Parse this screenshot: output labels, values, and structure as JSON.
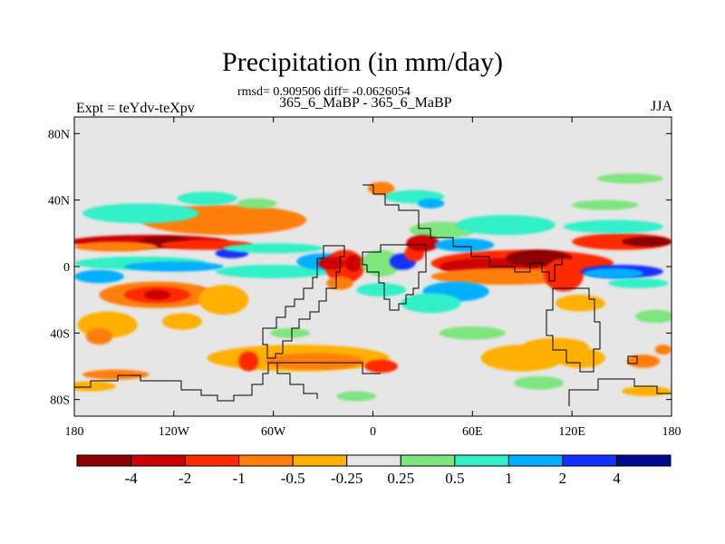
{
  "header": {
    "title": "Precipitation (in mm/day)",
    "stats_line": "rmsd= 0.909506 diff= -0.0626054",
    "case_line": "365_6_MaBP - 365_6_MaBP",
    "left_label": "Expt = teYdv-teXpv",
    "right_label": "JJA"
  },
  "chart_data": {
    "type": "heatmap",
    "title": "Precipitation (in mm/day)",
    "subtitle": "rmsd= 0.909506 diff= -0.0626054",
    "case": "365_6_MaBP - 365_6_MaBP",
    "experiment": "Expt = teYdv-teXpv",
    "season": "JJA",
    "projection": "cylindrical equidistant (lon/lat)",
    "xlim": [
      -180,
      180
    ],
    "ylim": [
      -90,
      90
    ],
    "x_ticks": [
      {
        "value": -180,
        "label": "180"
      },
      {
        "value": -120,
        "label": "120W"
      },
      {
        "value": -60,
        "label": "60W"
      },
      {
        "value": 0,
        "label": "0"
      },
      {
        "value": 60,
        "label": "60E"
      },
      {
        "value": 120,
        "label": "120E"
      },
      {
        "value": 180,
        "label": "180"
      }
    ],
    "y_ticks": [
      {
        "value": 80,
        "label": "80N"
      },
      {
        "value": 40,
        "label": "40N"
      },
      {
        "value": 0,
        "label": "0"
      },
      {
        "value": -40,
        "label": "40S"
      },
      {
        "value": -80,
        "label": "80S"
      }
    ],
    "colorbar": {
      "levels": [
        -4,
        -2,
        -1,
        -0.5,
        -0.25,
        0.25,
        0.5,
        1,
        2,
        4
      ],
      "level_labels": [
        "-4",
        "-2",
        "-1",
        "-0.5",
        "-0.25",
        "0.25",
        "0.5",
        "1",
        "2",
        "4"
      ],
      "colors": [
        "#8b0000",
        "#cc0000",
        "#ff2a00",
        "#ff7f0e",
        "#ffb000",
        "#e6e6e6",
        "#7fe57f",
        "#33f0c8",
        "#00b0ff",
        "#1432ff",
        "#000a8c"
      ]
    },
    "regions": [
      {
        "lon": -135,
        "lat": 15,
        "rlon": 48,
        "rlat": 4,
        "color": "#cc0000"
      },
      {
        "lon": -125,
        "lat": 15,
        "rlon": 16,
        "rlat": 3,
        "color": "#8b0000"
      },
      {
        "lon": -100,
        "lat": 13,
        "rlon": 28,
        "rlat": 3,
        "color": "#ff2a00"
      },
      {
        "lon": -85,
        "lat": 8,
        "rlon": 10,
        "rlat": 3,
        "color": "#1432ff"
      },
      {
        "lon": -155,
        "lat": 12,
        "rlon": 25,
        "rlat": 3,
        "color": "#ff7f0e"
      },
      {
        "lon": -90,
        "lat": 28,
        "rlon": 50,
        "rlat": 9,
        "color": "#ff7f0e"
      },
      {
        "lon": -140,
        "lat": 32,
        "rlon": 35,
        "rlat": 6,
        "color": "#33f0c8"
      },
      {
        "lon": -100,
        "lat": 41,
        "rlon": 18,
        "rlat": 4,
        "color": "#33f0c8"
      },
      {
        "lon": -70,
        "lat": 38,
        "rlon": 12,
        "rlat": 3,
        "color": "#7fe57f"
      },
      {
        "lon": -140,
        "lat": 2,
        "rlon": 40,
        "rlat": 4,
        "color": "#33f0c8"
      },
      {
        "lon": -120,
        "lat": 0,
        "rlon": 30,
        "rlat": 3,
        "color": "#00b0ff"
      },
      {
        "lon": -60,
        "lat": -3,
        "rlon": 35,
        "rlat": 4,
        "color": "#33f0c8"
      },
      {
        "lon": -130,
        "lat": -17,
        "rlon": 35,
        "rlat": 8,
        "color": "#ff7f0e"
      },
      {
        "lon": -130,
        "lat": -17,
        "rlon": 20,
        "rlat": 5,
        "color": "#ff2a00"
      },
      {
        "lon": -130,
        "lat": -17,
        "rlon": 8,
        "rlat": 3,
        "color": "#cc0000"
      },
      {
        "lon": -165,
        "lat": -6,
        "rlon": 15,
        "rlat": 4,
        "color": "#00b0ff"
      },
      {
        "lon": -90,
        "lat": -20,
        "rlon": 15,
        "rlat": 9,
        "color": "#ffb000"
      },
      {
        "lon": -160,
        "lat": -35,
        "rlon": 18,
        "rlat": 8,
        "color": "#ffb000"
      },
      {
        "lon": -165,
        "lat": -42,
        "rlon": 8,
        "rlat": 5,
        "color": "#ff7f0e"
      },
      {
        "lon": -115,
        "lat": -33,
        "rlon": 12,
        "rlat": 5,
        "color": "#ffb000"
      },
      {
        "lon": -45,
        "lat": -55,
        "rlon": 55,
        "rlat": 8,
        "color": "#ffb000"
      },
      {
        "lon": -35,
        "lat": -57,
        "rlon": 30,
        "rlat": 5,
        "color": "#ff7f0e"
      },
      {
        "lon": 5,
        "lat": -60,
        "rlon": 10,
        "rlat": 4,
        "color": "#ff2a00"
      },
      {
        "lon": -75,
        "lat": -57,
        "rlon": 6,
        "rlat": 6,
        "color": "#ff2a00"
      },
      {
        "lon": -170,
        "lat": -72,
        "rlon": 15,
        "rlat": 3,
        "color": "#ffb000"
      },
      {
        "lon": -10,
        "lat": -78,
        "rlon": 12,
        "rlat": 3,
        "color": "#7fe57f"
      },
      {
        "lon": -50,
        "lat": -40,
        "rlon": 12,
        "rlat": 3,
        "color": "#7fe57f"
      },
      {
        "lon": -60,
        "lat": 11,
        "rlon": 30,
        "rlat": 3,
        "color": "#33f0c8"
      },
      {
        "lon": -30,
        "lat": 3,
        "rlon": 16,
        "rlat": 5,
        "color": "#00b0ff"
      },
      {
        "lon": -17,
        "lat": 0,
        "rlon": 12,
        "rlat": 10,
        "color": "#ff2a00"
      },
      {
        "lon": -25,
        "lat": 2,
        "rlon": 8,
        "rlat": 4,
        "color": "#cc0000"
      },
      {
        "lon": -12,
        "lat": 2,
        "rlon": 5,
        "rlat": 5,
        "color": "#cc0000"
      },
      {
        "lon": -20,
        "lat": -10,
        "rlon": 8,
        "rlat": 4,
        "color": "#ff7f0e"
      },
      {
        "lon": 5,
        "lat": 2,
        "rlon": 12,
        "rlat": 8,
        "color": "#7fe57f"
      },
      {
        "lon": 18,
        "lat": 3,
        "rlon": 8,
        "rlat": 5,
        "color": "#1432ff"
      },
      {
        "lon": 25,
        "lat": 8,
        "rlon": 6,
        "rlat": 5,
        "color": "#ff2a00"
      },
      {
        "lon": 5,
        "lat": -14,
        "rlon": 15,
        "rlat": 4,
        "color": "#33f0c8"
      },
      {
        "lon": 8,
        "lat": 36,
        "rlon": 15,
        "rlat": 6,
        "color": "#e6e6e6"
      },
      {
        "lon": 5,
        "lat": 47,
        "rlon": 8,
        "rlat": 4,
        "color": "#ff7f0e"
      },
      {
        "lon": 25,
        "lat": 42,
        "rlon": 18,
        "rlat": 4,
        "color": "#33f0c8"
      },
      {
        "lon": 35,
        "lat": 38,
        "rlon": 8,
        "rlat": 3,
        "color": "#00b0ff"
      },
      {
        "lon": 42,
        "lat": 22,
        "rlon": 20,
        "rlat": 5,
        "color": "#7fe57f"
      },
      {
        "lon": 30,
        "lat": 14,
        "rlon": 10,
        "rlat": 5,
        "color": "#cc0000"
      },
      {
        "lon": 55,
        "lat": 13,
        "rlon": 18,
        "rlat": 4,
        "color": "#00b0ff"
      },
      {
        "lon": 80,
        "lat": 25,
        "rlon": 30,
        "rlat": 6,
        "color": "#33f0c8"
      },
      {
        "lon": 90,
        "lat": 2,
        "rlon": 55,
        "rlat": 8,
        "color": "#ff2a00"
      },
      {
        "lon": 70,
        "lat": 0,
        "rlon": 30,
        "rlat": 5,
        "color": "#cc0000"
      },
      {
        "lon": 100,
        "lat": 5,
        "rlon": 20,
        "rlat": 5,
        "color": "#8b0000"
      },
      {
        "lon": 80,
        "lat": -6,
        "rlon": 45,
        "rlat": 5,
        "color": "#ff7f0e"
      },
      {
        "lon": 50,
        "lat": -15,
        "rlon": 20,
        "rlat": 6,
        "color": "#00b0ff"
      },
      {
        "lon": 35,
        "lat": -22,
        "rlon": 18,
        "rlat": 6,
        "color": "#33f0c8"
      },
      {
        "lon": 115,
        "lat": -5,
        "rlon": 12,
        "rlat": 10,
        "color": "#ff2a00"
      },
      {
        "lon": 150,
        "lat": 15,
        "rlon": 30,
        "rlat": 5,
        "color": "#ff2a00"
      },
      {
        "lon": 165,
        "lat": 15,
        "rlon": 15,
        "rlat": 3,
        "color": "#8b0000"
      },
      {
        "lon": 145,
        "lat": 24,
        "rlon": 30,
        "rlat": 4,
        "color": "#33f0c8"
      },
      {
        "lon": 140,
        "lat": 37,
        "rlon": 20,
        "rlat": 3,
        "color": "#7fe57f"
      },
      {
        "lon": 155,
        "lat": 53,
        "rlon": 20,
        "rlat": 3,
        "color": "#7fe57f"
      },
      {
        "lon": 150,
        "lat": -3,
        "rlon": 25,
        "rlat": 4,
        "color": "#1432ff"
      },
      {
        "lon": 145,
        "lat": -4,
        "rlon": 18,
        "rlat": 3,
        "color": "#00b0ff"
      },
      {
        "lon": 160,
        "lat": -10,
        "rlon": 18,
        "rlat": 3,
        "color": "#33f0c8"
      },
      {
        "lon": 90,
        "lat": -55,
        "rlon": 25,
        "rlat": 8,
        "color": "#ffb000"
      },
      {
        "lon": 110,
        "lat": -48,
        "rlon": 20,
        "rlat": 5,
        "color": "#ffb000"
      },
      {
        "lon": 125,
        "lat": -22,
        "rlon": 15,
        "rlat": 5,
        "color": "#ffb000"
      },
      {
        "lon": 125,
        "lat": -55,
        "rlon": 15,
        "rlat": 6,
        "color": "#ffb000"
      },
      {
        "lon": 163,
        "lat": -57,
        "rlon": 10,
        "rlat": 4,
        "color": "#ff7f0e"
      },
      {
        "lon": 175,
        "lat": -50,
        "rlon": 5,
        "rlat": 3,
        "color": "#ff7f0e"
      },
      {
        "lon": 60,
        "lat": -40,
        "rlon": 20,
        "rlat": 4,
        "color": "#7fe57f"
      },
      {
        "lon": 170,
        "lat": -30,
        "rlon": 12,
        "rlat": 4,
        "color": "#7fe57f"
      },
      {
        "lon": 100,
        "lat": -70,
        "rlon": 15,
        "rlat": 4,
        "color": "#7fe57f"
      },
      {
        "lon": -155,
        "lat": -65,
        "rlon": 20,
        "rlat": 3,
        "color": "#ff7f0e"
      },
      {
        "lon": 165,
        "lat": -75,
        "rlon": 15,
        "rlat": 3,
        "color": "#ffb000"
      }
    ]
  }
}
